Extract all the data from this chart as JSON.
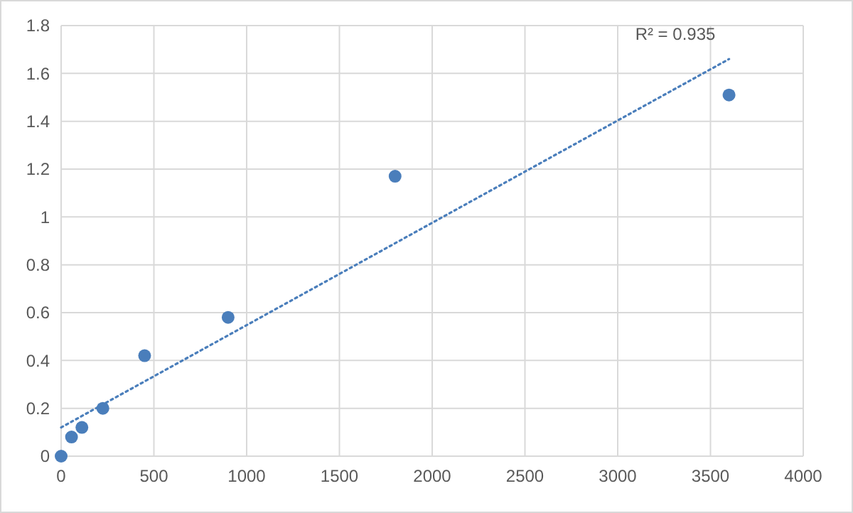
{
  "chart_data": {
    "type": "scatter",
    "xlim": [
      0,
      4000
    ],
    "xticks": [
      0,
      500,
      1000,
      1500,
      2000,
      2500,
      3000,
      3500,
      4000
    ],
    "ylim": [
      0,
      1.8
    ],
    "yticks": [
      0,
      0.2,
      0.4,
      0.6,
      0.8,
      1,
      1.2,
      1.4,
      1.6,
      1.8
    ],
    "grid": true,
    "marker": "circle",
    "series": [
      {
        "color": "#4a7ebb",
        "x": [
          0,
          56,
          112,
          225,
          450,
          900,
          1800,
          3600
        ],
        "values": [
          0,
          0.08,
          0.12,
          0.2,
          0.42,
          0.58,
          1.17,
          1.51
        ]
      },
      {
        "type": "line",
        "color": "#4a7ebb",
        "line_style": "dotted",
        "marker": "none",
        "x": [
          0,
          3600
        ],
        "values": [
          0.12,
          1.66
        ]
      }
    ],
    "annotations": [
      "R² = 0.935"
    ]
  }
}
